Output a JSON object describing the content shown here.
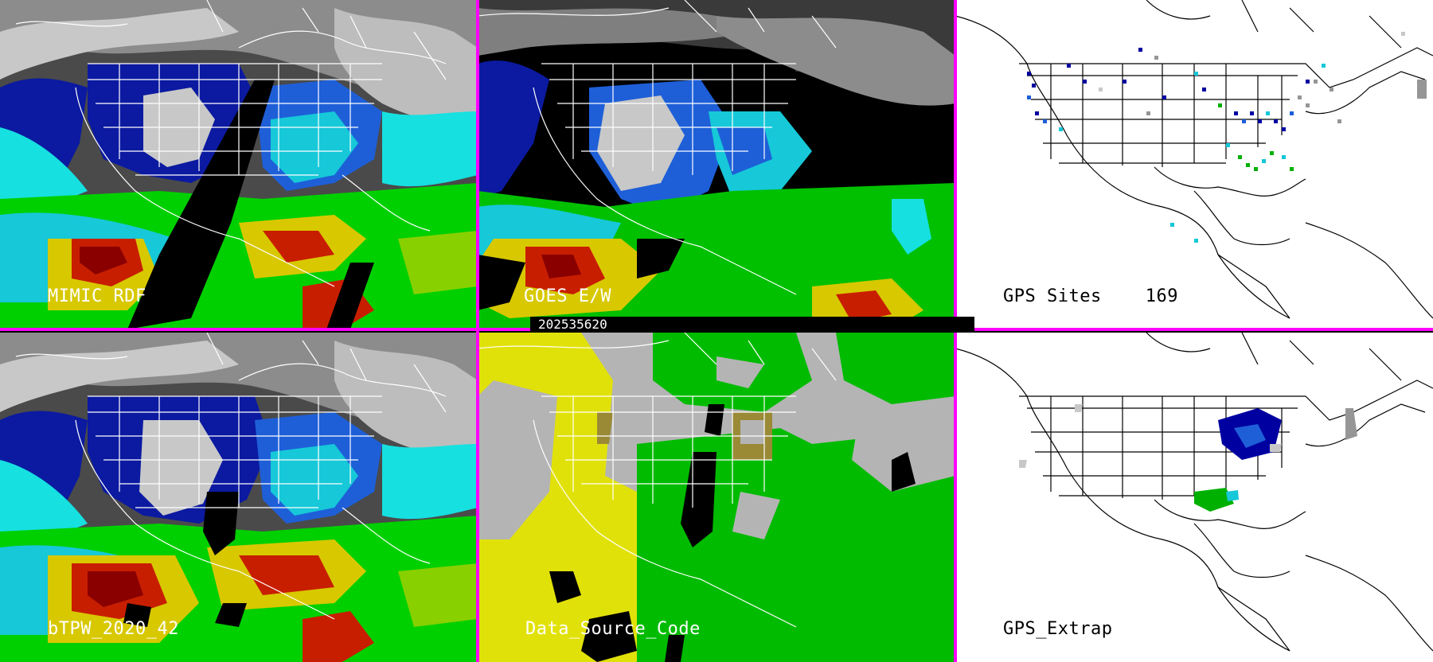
{
  "timestamp": "202535620",
  "colors": {
    "divider": "#ff00ff",
    "palette_tpw": [
      "#2a2a2a",
      "#7f7f7f",
      "#c8c8c8",
      "#0b1aa0",
      "#1e5fd8",
      "#16c8d8",
      "#16e0e0",
      "#00e000",
      "#88d000",
      "#d8c800",
      "#c81e00",
      "#8a0000"
    ],
    "palette_source": {
      "gray": "#b4b4b4",
      "yellow": "#e1e10a",
      "green": "#00bb00",
      "olive": "#9a8a36",
      "black": "#000000"
    },
    "palette_gps": [
      "#0000a0",
      "#1e5fd8",
      "#16c8d8",
      "#00b000",
      "#969696",
      "#c8c8c8"
    ]
  },
  "panels": [
    {
      "id": "mimic-rdf",
      "label": "MIMIC RDF",
      "kind": "tpw",
      "label_color": "light"
    },
    {
      "id": "goes-e-w",
      "label": "GOES E/W",
      "kind": "goes",
      "label_color": "light"
    },
    {
      "id": "gps-sites",
      "label": "GPS Sites",
      "count": "169",
      "kind": "gps",
      "label_color": "dark"
    },
    {
      "id": "btpw-2020-42",
      "label": "bTPW_2020_42",
      "kind": "tpw",
      "label_color": "light"
    },
    {
      "id": "data-source-code",
      "label": "Data_Source_Code",
      "kind": "source",
      "label_color": "light"
    },
    {
      "id": "gps-extrap",
      "label": "GPS_Extrap",
      "kind": "gpsextrap",
      "label_color": "dark"
    }
  ]
}
